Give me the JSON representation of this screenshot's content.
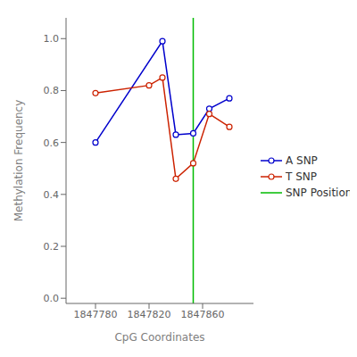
{
  "chart_data": {
    "type": "line",
    "xlabel": "CpG Coordinates",
    "ylabel": "Methylation Frequency",
    "series": [
      {
        "name": "A SNP",
        "color": "#0000CC",
        "marker": "open_circle",
        "x": [
          1847780,
          1847830,
          1847840,
          1847853,
          1847865,
          1847880
        ],
        "values": [
          0.6,
          0.99,
          0.63,
          0.635,
          0.73,
          0.77
        ]
      },
      {
        "name": "T SNP",
        "color": "#CC2200",
        "marker": "open_circle",
        "x": [
          1847780,
          1847820,
          1847830,
          1847840,
          1847853,
          1847865,
          1847880
        ],
        "values": [
          0.79,
          0.82,
          0.85,
          0.46,
          0.52,
          0.71,
          0.66
        ]
      },
      {
        "name": "SNP Position",
        "type": "vline",
        "color": "#00BB00",
        "x": [
          1847853
        ]
      }
    ],
    "xlim": [
      1847758,
      1847898
    ],
    "ylim": [
      -0.02,
      1.08
    ],
    "xticks": [
      1847780,
      1847820,
      1847860
    ],
    "yticks": [
      {
        "value": 0.0,
        "label": "0.0"
      },
      0.2,
      0.4,
      0.6,
      0.8,
      {
        "value": 1.0,
        "label": "1.0"
      }
    ],
    "grid": false,
    "legend": "right"
  }
}
